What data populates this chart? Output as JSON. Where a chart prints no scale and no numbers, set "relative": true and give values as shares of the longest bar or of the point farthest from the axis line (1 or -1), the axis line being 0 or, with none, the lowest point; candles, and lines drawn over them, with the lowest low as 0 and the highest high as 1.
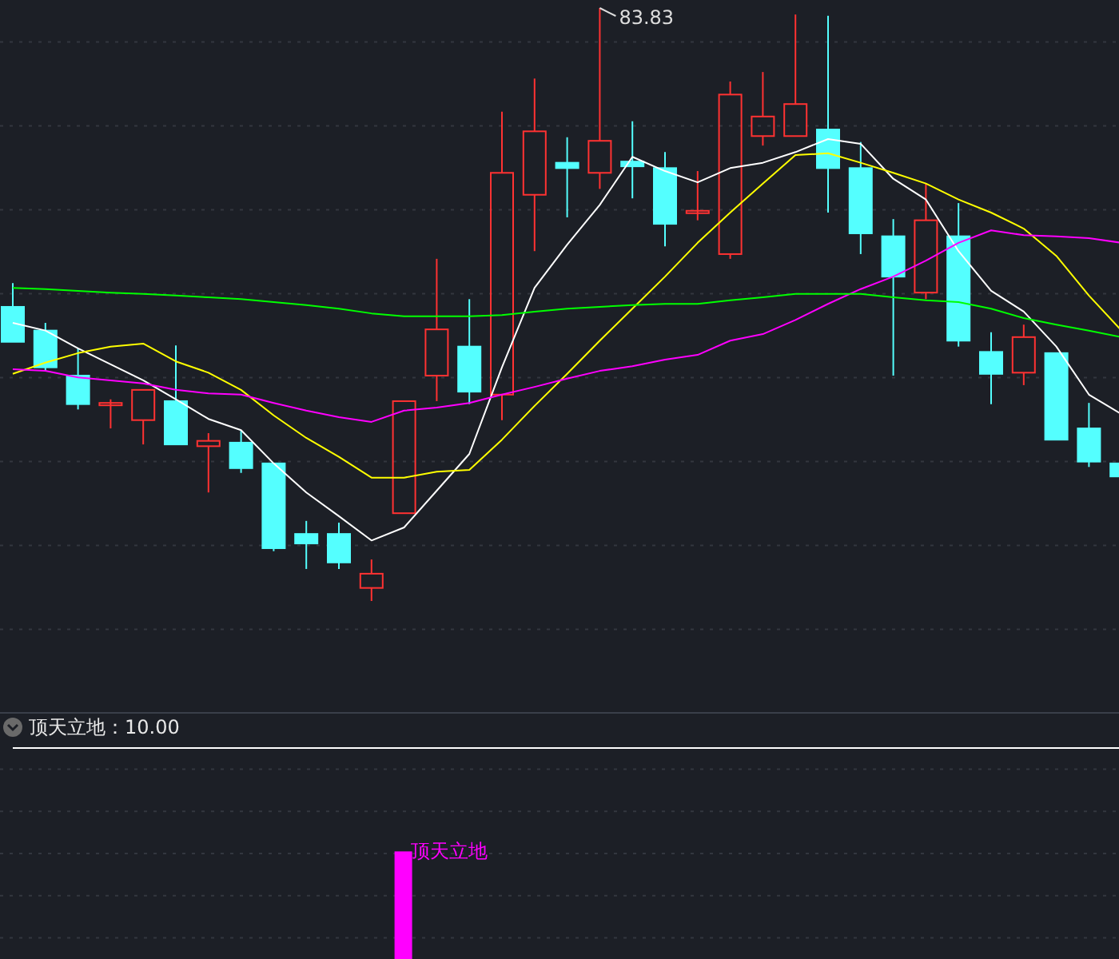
{
  "chart_data": [
    {
      "type": "candlestick",
      "relative": true,
      "grid": true,
      "categories": [
        null,
        null,
        null,
        null,
        null,
        null,
        null,
        null,
        null,
        null,
        null,
        null,
        null,
        null,
        null,
        null,
        null,
        null,
        null,
        null,
        null,
        null,
        null,
        null,
        null,
        null,
        null,
        null,
        null,
        null,
        null,
        null,
        null,
        null,
        null
      ],
      "ohlc": [
        [
          0.496,
          0.536,
          0.437,
          0.437
        ],
        [
          0.456,
          0.469,
          0.388,
          0.394
        ],
        [
          0.38,
          0.426,
          0.323,
          0.332
        ],
        [
          0.334,
          0.34,
          0.291,
          0.334
        ],
        [
          0.305,
          0.356,
          0.264,
          0.356
        ],
        [
          0.337,
          0.431,
          0.264,
          0.264
        ],
        [
          0.261,
          0.283,
          0.183,
          0.27
        ],
        [
          0.267,
          0.288,
          0.216,
          0.224
        ],
        [
          0.232,
          0.232,
          0.084,
          0.089
        ],
        [
          0.113,
          0.135,
          0.054,
          0.097
        ],
        [
          0.113,
          0.132,
          0.054,
          0.065
        ],
        [
          0.022,
          0.07,
          0,
          0.046
        ],
        [
          0.148,
          0.337,
          0.148,
          0.337
        ],
        [
          0.38,
          0.577,
          0.337,
          0.458
        ],
        [
          0.429,
          0.509,
          0.332,
          0.353
        ],
        [
          0.348,
          0.825,
          0.305,
          0.722
        ],
        [
          0.685,
          0.881,
          0.59,
          0.792
        ],
        [
          0.739,
          0.782,
          0.647,
          0.73
        ],
        [
          0.722,
          1,
          0.695,
          0.776
        ],
        [
          0.741,
          0.809,
          0.679,
          0.733
        ],
        [
          0.73,
          0.757,
          0.598,
          0.636
        ],
        [
          0.658,
          0.725,
          0.642,
          0.658
        ],
        [
          0.585,
          0.876,
          0.577,
          0.854
        ],
        [
          0.784,
          0.892,
          0.768,
          0.817
        ],
        [
          0.784,
          0.989,
          0.784,
          0.838
        ],
        [
          0.795,
          0.987,
          0.655,
          0.73
        ],
        [
          0.73,
          0.774,
          0.585,
          0.62
        ],
        [
          0.615,
          0.644,
          0.38,
          0.547
        ],
        [
          0.52,
          0.704,
          0.509,
          0.642
        ],
        [
          0.615,
          0.671,
          0.429,
          0.439
        ],
        [
          0.42,
          0.453,
          0.332,
          0.383
        ],
        [
          0.385,
          0.466,
          0.364,
          0.445
        ],
        [
          0.418,
          0.418,
          0.272,
          0.272
        ],
        [
          0.291,
          0.334,
          0.226,
          0.235
        ],
        [
          0.232,
          0.232,
          0.21,
          0.21
        ]
      ],
      "series": [
        {
          "type": "line",
          "color": "#ffffff",
          "values": [
            0.469,
            0.456,
            0.426,
            0.399,
            0.372,
            0.34,
            0.307,
            0.288,
            0.232,
            0.183,
            0.143,
            0.102,
            0.124,
            0.186,
            0.248,
            0.394,
            0.528,
            0.601,
            0.668,
            0.749,
            0.725,
            0.706,
            0.73,
            0.739,
            0.757,
            0.779,
            0.771,
            0.712,
            0.677,
            0.59,
            0.523,
            0.488,
            0.429,
            0.348,
            0.315
          ]
        },
        {
          "type": "line",
          "color": "#ffff00",
          "values": [
            0.383,
            0.402,
            0.418,
            0.429,
            0.434,
            0.404,
            0.385,
            0.356,
            0.313,
            0.275,
            0.243,
            0.208,
            0.208,
            0.218,
            0.221,
            0.272,
            0.329,
            0.383,
            0.439,
            0.493,
            0.547,
            0.604,
            0.655,
            0.704,
            0.752,
            0.755,
            0.739,
            0.722,
            0.704,
            0.677,
            0.655,
            0.628,
            0.582,
            0.515,
            0.456
          ]
        },
        {
          "type": "line",
          "color": "#ff00ff",
          "values": [
            0.391,
            0.388,
            0.377,
            0.372,
            0.367,
            0.356,
            0.35,
            0.348,
            0.334,
            0.321,
            0.31,
            0.302,
            0.321,
            0.326,
            0.334,
            0.348,
            0.361,
            0.375,
            0.388,
            0.396,
            0.407,
            0.415,
            0.439,
            0.45,
            0.474,
            0.501,
            0.526,
            0.547,
            0.574,
            0.604,
            0.625,
            0.617,
            0.615,
            0.612,
            0.604
          ]
        },
        {
          "type": "line",
          "color": "#00ff00",
          "values": [
            0.528,
            0.526,
            0.523,
            0.52,
            0.518,
            0.515,
            0.512,
            0.509,
            0.504,
            0.499,
            0.493,
            0.485,
            0.48,
            0.48,
            0.48,
            0.482,
            0.488,
            0.493,
            0.496,
            0.499,
            0.501,
            0.501,
            0.507,
            0.512,
            0.518,
            0.518,
            0.518,
            0.512,
            0.507,
            0.504,
            0.493,
            0.477,
            0.466,
            0.456,
            0.445
          ]
        }
      ],
      "annotations": [
        "83.83"
      ]
    },
    {
      "type": "bar",
      "relative": true,
      "grid": true,
      "title": "顶天立地：10.00",
      "categories": [
        null,
        null,
        null,
        null,
        null,
        null,
        null,
        null,
        null,
        null,
        null,
        null,
        null,
        null,
        null,
        null,
        null,
        null,
        null,
        null,
        null,
        null,
        null,
        null,
        null,
        null,
        null,
        null,
        null,
        null,
        null,
        null,
        null,
        null,
        null
      ],
      "series": [
        {
          "type": "bar",
          "color": "#ff00ff",
          "values": [
            null,
            null,
            null,
            null,
            null,
            null,
            null,
            null,
            null,
            null,
            null,
            null,
            0.51,
            null,
            null,
            null,
            null,
            null,
            null,
            null,
            null,
            null,
            null,
            null,
            null,
            null,
            null,
            null,
            null,
            null,
            null,
            null,
            null,
            null,
            null
          ]
        },
        {
          "type": "line",
          "color": "#ffffff",
          "values": [
            1,
            1,
            1,
            1,
            1,
            1,
            1,
            1,
            1,
            1,
            1,
            1,
            1,
            1,
            1,
            1,
            1,
            1,
            1,
            1,
            1,
            1,
            1,
            1,
            1,
            1,
            1,
            1,
            1,
            1,
            1,
            1,
            1,
            1,
            1
          ]
        }
      ],
      "annotations": [
        "顶天立地"
      ]
    }
  ]
}
